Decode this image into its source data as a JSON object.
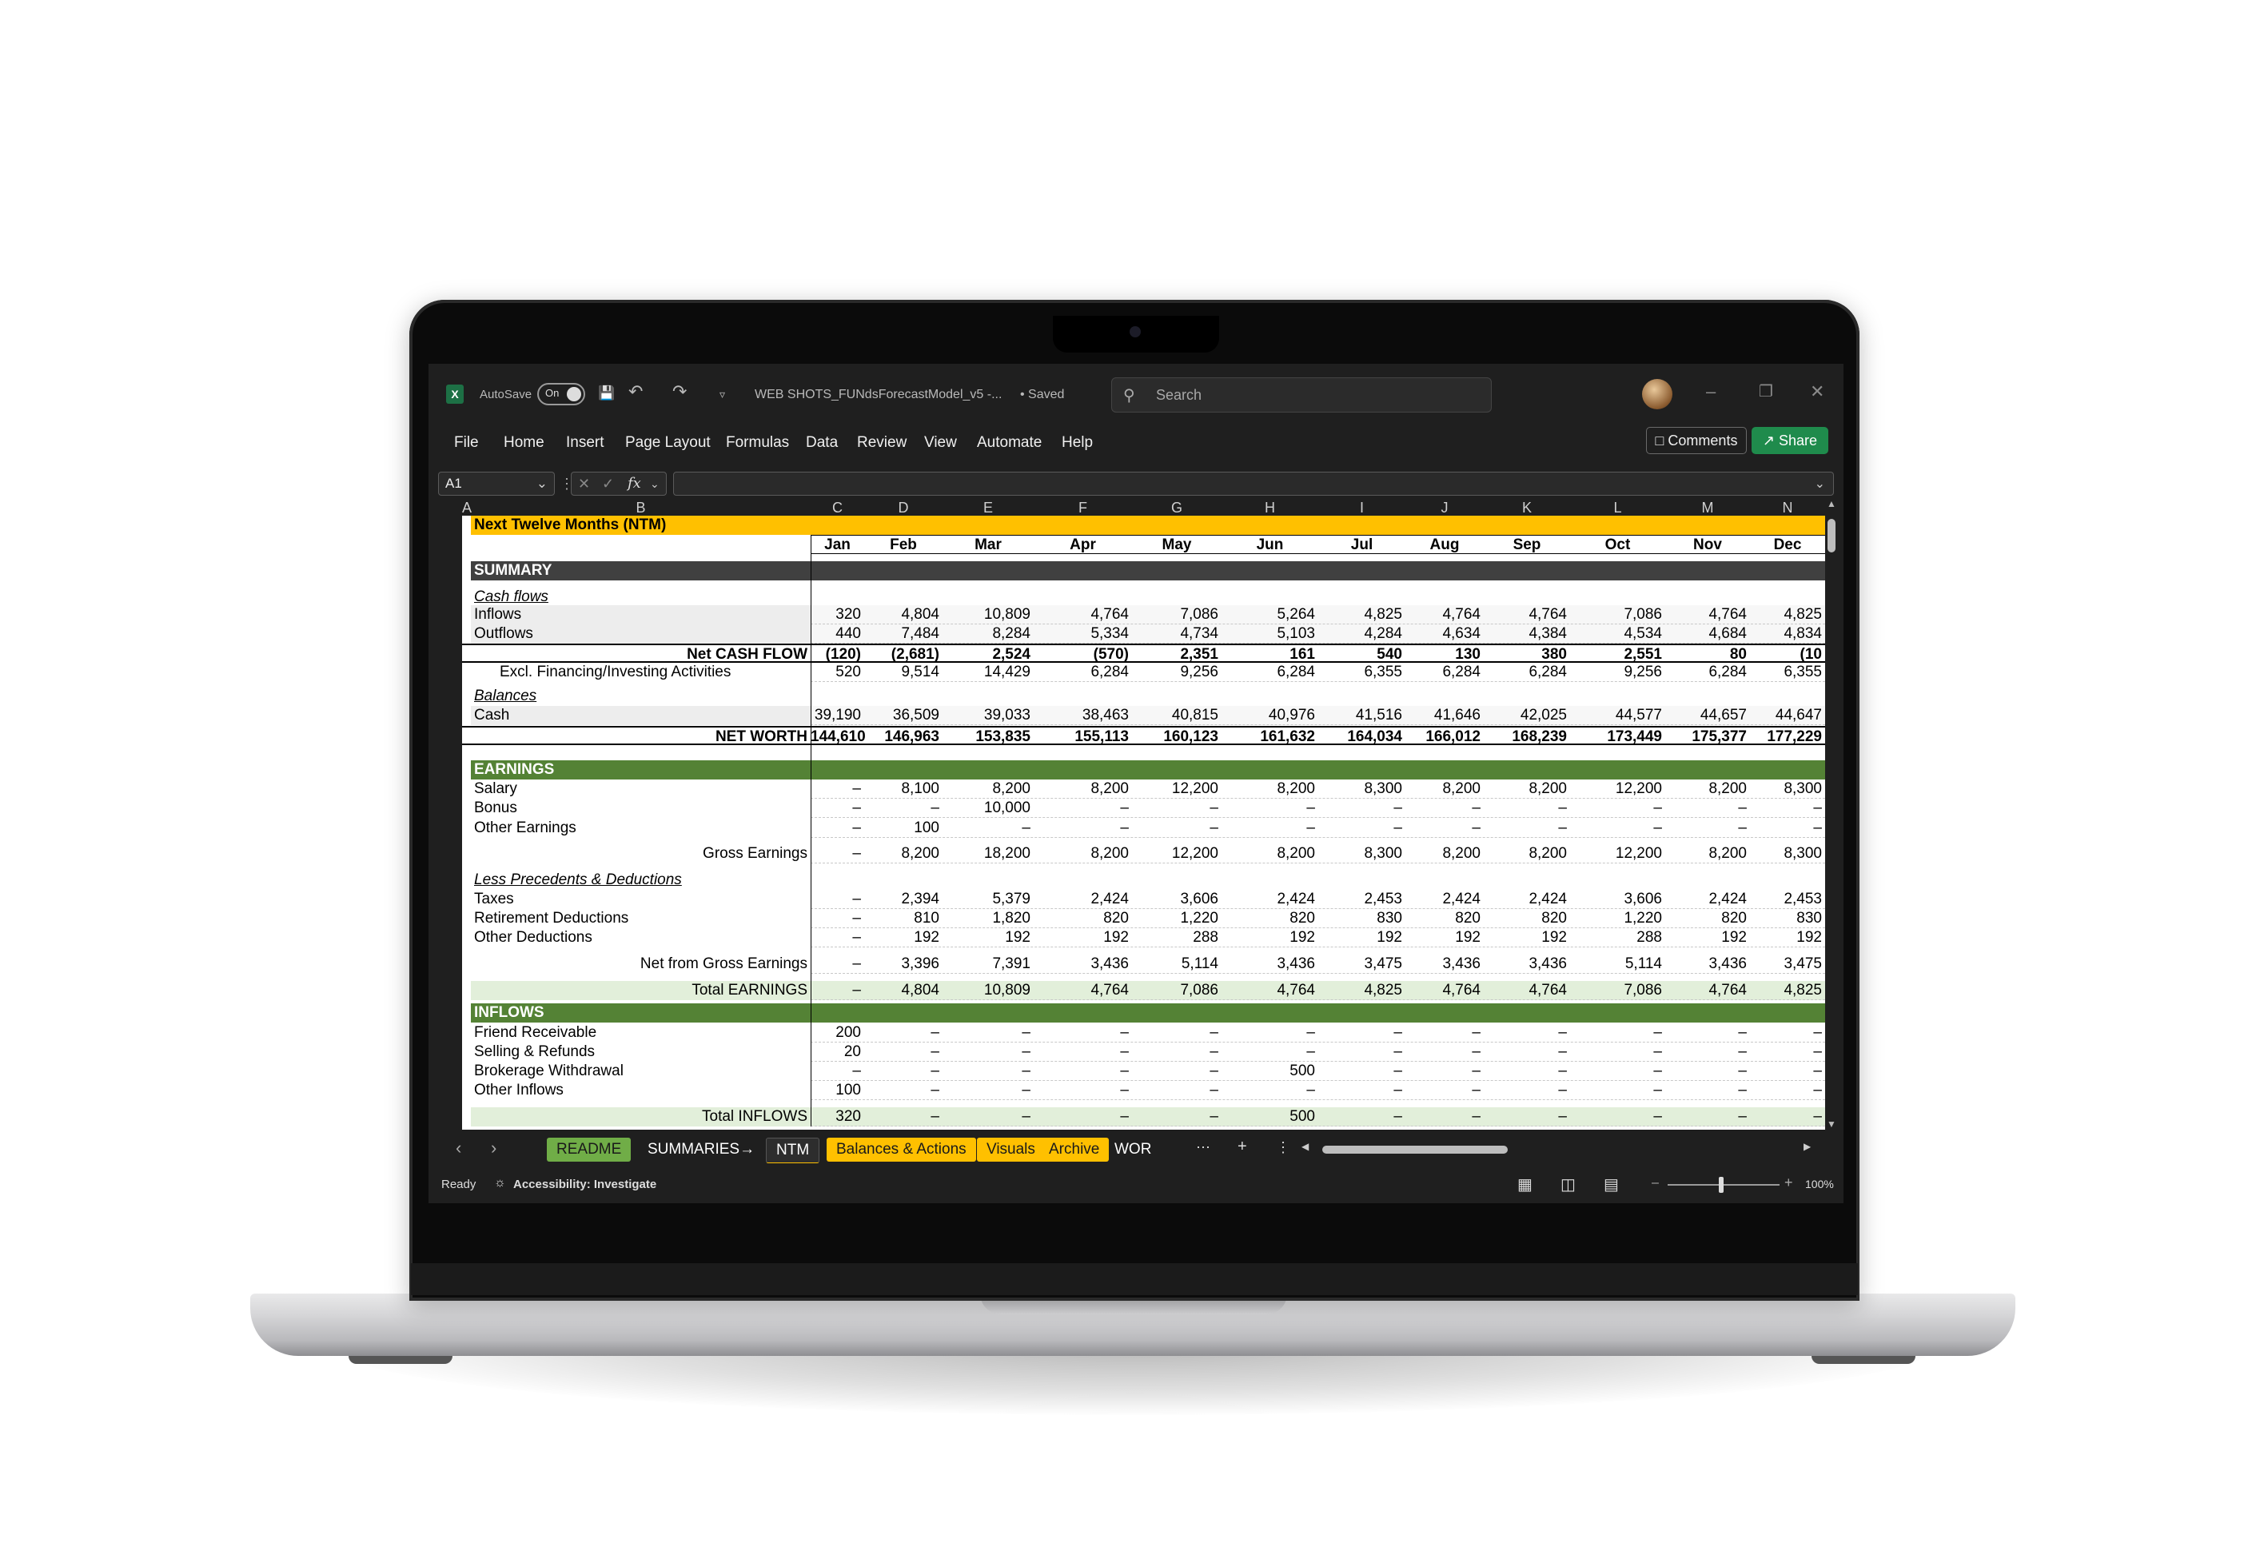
{
  "app": {
    "autosave_label": "AutoSave",
    "autosave_state": "On",
    "file_title": "WEB SHOTS_FUNdsForecastModel_v5  -...",
    "saved_status": "• Saved",
    "search_placeholder": "Search",
    "comments_label": "Comments",
    "share_label": "Share"
  },
  "menu": [
    "File",
    "Home",
    "Insert",
    "Page Layout",
    "Formulas",
    "Data",
    "Review",
    "View",
    "Automate",
    "Help"
  ],
  "formula_bar": {
    "name_box": "A1",
    "formula": ""
  },
  "columns": [
    "A",
    "B",
    "C",
    "D",
    "E",
    "F",
    "G",
    "H",
    "I",
    "J",
    "K",
    "L",
    "M",
    "N"
  ],
  "months": [
    "Jan",
    "Feb",
    "Mar",
    "Apr",
    "May",
    "Jun",
    "Jul",
    "Aug",
    "Sep",
    "Oct",
    "Nov",
    "Dec"
  ],
  "rows": [
    {
      "n": "2",
      "label": "Next Twelve Months (NTM)",
      "style": "yellow",
      "values": []
    },
    {
      "n": "4",
      "label": "",
      "style": "months",
      "values": []
    },
    {
      "n": "6",
      "label": "SUMMARY",
      "style": "darkhead",
      "values": []
    },
    {
      "n": "8",
      "label": "Cash flows",
      "style": "italic",
      "values": []
    },
    {
      "n": "9",
      "label": "Inflows",
      "style": "gray",
      "values": [
        "320",
        "4,804",
        "10,809",
        "4,764",
        "7,086",
        "5,264",
        "4,825",
        "4,764",
        "4,764",
        "7,086",
        "4,764",
        "4,825"
      ]
    },
    {
      "n": "10",
      "label": "Outflows",
      "style": "gray",
      "values": [
        "440",
        "7,484",
        "8,284",
        "5,334",
        "4,734",
        "5,103",
        "4,284",
        "4,634",
        "4,384",
        "4,534",
        "4,684",
        "4,834"
      ]
    },
    {
      "n": "11",
      "label": "Net CASH FLOW",
      "style": "boldright",
      "values": [
        "(120)",
        "(2,681)",
        "2,524",
        "(570)",
        "2,351",
        "161",
        "540",
        "130",
        "380",
        "2,551",
        "80",
        "(10"
      ]
    },
    {
      "n": "12",
      "label": "Excl. Financing/Investing Activities",
      "style": "indent",
      "values": [
        "520",
        "9,514",
        "14,429",
        "6,284",
        "9,256",
        "6,284",
        "6,355",
        "6,284",
        "6,284",
        "9,256",
        "6,284",
        "6,355"
      ]
    },
    {
      "n": "14",
      "label": "Balances",
      "style": "italic",
      "values": []
    },
    {
      "n": "15",
      "label": "Cash",
      "style": "gray",
      "values": [
        "39,190",
        "36,509",
        "39,033",
        "38,463",
        "40,815",
        "40,976",
        "41,516",
        "41,646",
        "42,025",
        "44,577",
        "44,657",
        "44,647"
      ]
    },
    {
      "n": "16",
      "label": "NET WORTH",
      "style": "boldright",
      "values": [
        "144,610",
        "146,963",
        "153,835",
        "155,113",
        "160,123",
        "161,632",
        "164,034",
        "166,012",
        "168,239",
        "173,449",
        "175,377",
        "177,229"
      ]
    },
    {
      "n": "17",
      "label": "",
      "style": "plain",
      "values": []
    },
    {
      "n": "18",
      "label": "EARNINGS",
      "style": "greenhead",
      "values": []
    },
    {
      "n": "19",
      "label": "Salary",
      "style": "plain",
      "values": [
        "–",
        "8,100",
        "8,200",
        "8,200",
        "12,200",
        "8,200",
        "8,300",
        "8,200",
        "8,200",
        "12,200",
        "8,200",
        "8,300"
      ]
    },
    {
      "n": "20",
      "label": "Bonus",
      "style": "plain",
      "values": [
        "–",
        "–",
        "10,000",
        "–",
        "–",
        "–",
        "–",
        "–",
        "–",
        "–",
        "–",
        "–"
      ]
    },
    {
      "n": "21",
      "label": "Other Earnings",
      "style": "plain",
      "values": [
        "–",
        "100",
        "–",
        "–",
        "–",
        "–",
        "–",
        "–",
        "–",
        "–",
        "–",
        "–"
      ]
    },
    {
      "n": "23",
      "label": "Gross Earnings",
      "style": "right",
      "values": [
        "–",
        "8,200",
        "18,200",
        "8,200",
        "12,200",
        "8,200",
        "8,300",
        "8,200",
        "8,200",
        "12,200",
        "8,200",
        "8,300"
      ]
    },
    {
      "n": "25",
      "label": "Less Precedents & Deductions",
      "style": "italic",
      "values": []
    },
    {
      "n": "26",
      "label": "Taxes",
      "style": "plain",
      "values": [
        "–",
        "2,394",
        "5,379",
        "2,424",
        "3,606",
        "2,424",
        "2,453",
        "2,424",
        "2,424",
        "3,606",
        "2,424",
        "2,453"
      ]
    },
    {
      "n": "27",
      "label": "Retirement Deductions",
      "style": "plain",
      "values": [
        "–",
        "810",
        "1,820",
        "820",
        "1,220",
        "820",
        "830",
        "820",
        "820",
        "1,220",
        "820",
        "830"
      ]
    },
    {
      "n": "28",
      "label": "Other Deductions",
      "style": "plain",
      "values": [
        "–",
        "192",
        "192",
        "192",
        "288",
        "192",
        "192",
        "192",
        "192",
        "288",
        "192",
        "192"
      ]
    },
    {
      "n": "30",
      "label": "Net from Gross Earnings",
      "style": "right",
      "values": [
        "–",
        "3,396",
        "7,391",
        "3,436",
        "5,114",
        "3,436",
        "3,475",
        "3,436",
        "3,436",
        "5,114",
        "3,436",
        "3,475"
      ]
    },
    {
      "n": "32",
      "label": "Total EARNINGS",
      "style": "lightgreen",
      "values": [
        "–",
        "4,804",
        "10,809",
        "4,764",
        "7,086",
        "4,764",
        "4,825",
        "4,764",
        "4,764",
        "7,086",
        "4,764",
        "4,825"
      ]
    },
    {
      "n": "34",
      "label": "INFLOWS",
      "style": "greenhead",
      "values": []
    },
    {
      "n": "35",
      "label": "Friend Receivable",
      "style": "plain",
      "values": [
        "200",
        "–",
        "–",
        "–",
        "–",
        "–",
        "–",
        "–",
        "–",
        "–",
        "–",
        "–"
      ]
    },
    {
      "n": "36",
      "label": "Selling & Refunds",
      "style": "plain",
      "values": [
        "20",
        "–",
        "–",
        "–",
        "–",
        "–",
        "–",
        "–",
        "–",
        "–",
        "–",
        "–"
      ]
    },
    {
      "n": "37",
      "label": "Brokerage Withdrawal",
      "style": "plain",
      "values": [
        "–",
        "–",
        "–",
        "–",
        "–",
        "500",
        "–",
        "–",
        "–",
        "–",
        "–",
        "–"
      ]
    },
    {
      "n": "38",
      "label": "Other Inflows",
      "style": "plain",
      "values": [
        "100",
        "–",
        "–",
        "–",
        "–",
        "–",
        "–",
        "–",
        "–",
        "–",
        "–",
        "–"
      ]
    },
    {
      "n": "40",
      "label": "Total INFLOWS",
      "style": "lightgreen",
      "values": [
        "320",
        "–",
        "–",
        "–",
        "–",
        "500",
        "–",
        "–",
        "–",
        "–",
        "–",
        "–"
      ]
    }
  ],
  "sheet_tabs": [
    {
      "label": "README",
      "color": "#70ad47",
      "text": "#1a1a1a"
    },
    {
      "label": "SUMMARIES→",
      "color": "",
      "text": "#ffffff"
    },
    {
      "label": "NTM",
      "color": "active",
      "text": "#ffffff"
    },
    {
      "label": "Balances & Actions",
      "color": "#ffc000",
      "text": "#1a1a1a"
    },
    {
      "label": "Visuals",
      "color": "#ffc000",
      "text": "#1a1a1a"
    },
    {
      "label": "Archive",
      "color": "#ffc000",
      "text": "#1a1a1a"
    },
    {
      "label": "WOR",
      "color": "",
      "text": "#ffffff"
    }
  ],
  "status": {
    "ready": "Ready",
    "accessibility": "Accessibility: Investigate",
    "zoom": "100%"
  },
  "colors": {
    "yellow": "#ffc000",
    "dark_header": "#404040",
    "green_header": "#548235",
    "light_green": "#e2efda",
    "light_gray": "#ededed"
  }
}
